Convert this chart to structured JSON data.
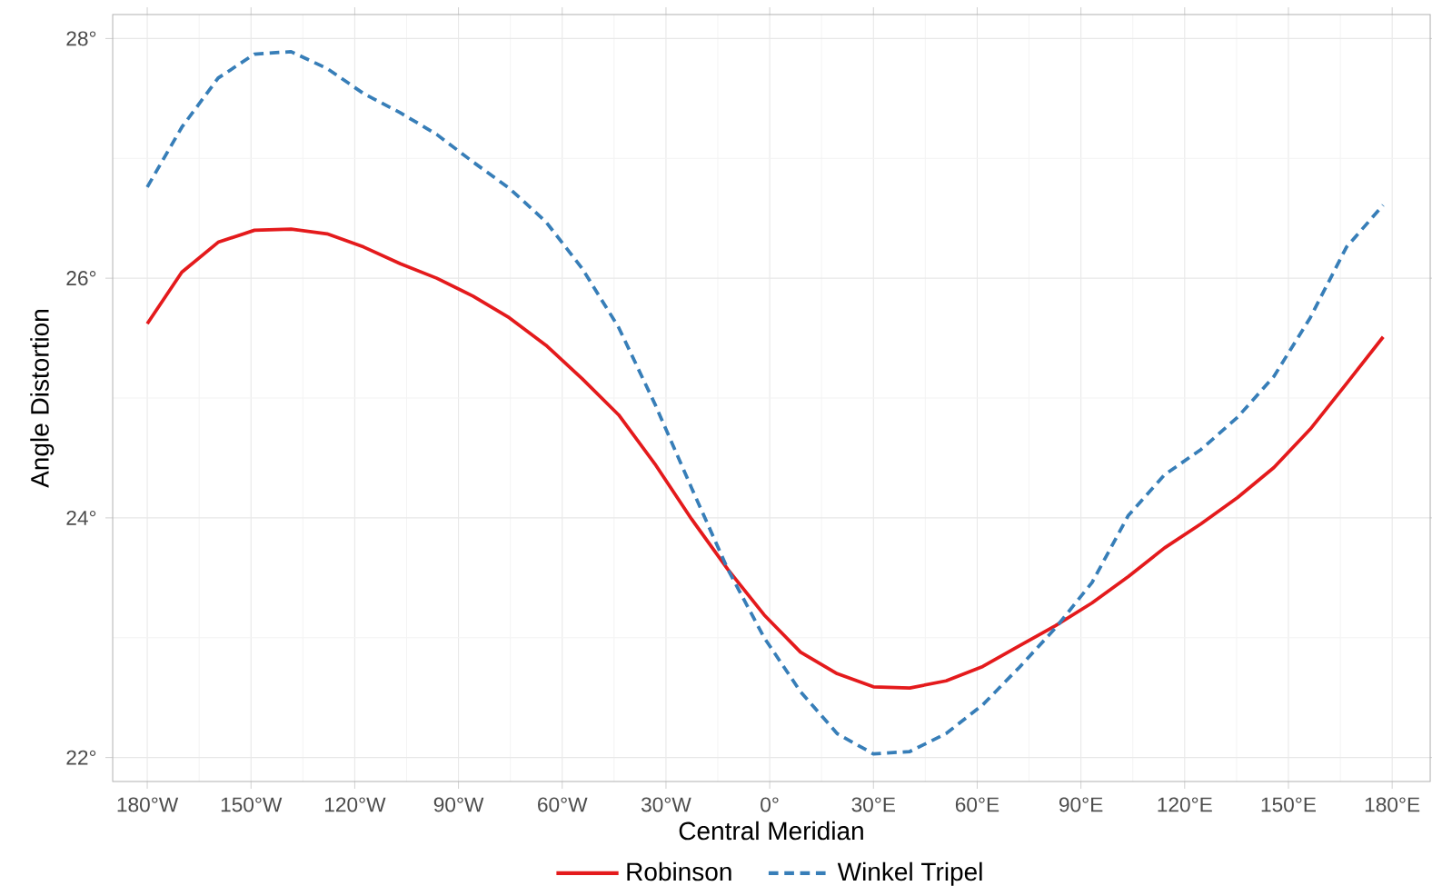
{
  "chart_data": {
    "type": "line",
    "xlabel": "Central Meridian",
    "ylabel": "Angle Distortion",
    "xlim": [
      -190,
      191
    ],
    "ylim": [
      21.8,
      28.2
    ],
    "xticks": [
      {
        "value": -180,
        "label": "180°W"
      },
      {
        "value": -150,
        "label": "150°W"
      },
      {
        "value": -120,
        "label": "120°W"
      },
      {
        "value": -90,
        "label": "90°W"
      },
      {
        "value": -60,
        "label": "60°W"
      },
      {
        "value": -30,
        "label": "30°W"
      },
      {
        "value": 0,
        "label": "0°"
      },
      {
        "value": 30,
        "label": "30°E"
      },
      {
        "value": 60,
        "label": "60°E"
      },
      {
        "value": 90,
        "label": "90°E"
      },
      {
        "value": 120,
        "label": "120°E"
      },
      {
        "value": 150,
        "label": "150°E"
      },
      {
        "value": 180,
        "label": "180°E"
      }
    ],
    "yticks": [
      {
        "value": 22,
        "label": "22°"
      },
      {
        "value": 24,
        "label": "24°"
      },
      {
        "value": 26,
        "label": "26°"
      },
      {
        "value": 28,
        "label": "28°"
      }
    ],
    "grid": true,
    "legend": "bottom",
    "x": [
      -180,
      -170,
      -159.5,
      -149,
      -138.4,
      -128,
      -117.4,
      -106.8,
      -96.3,
      -85.8,
      -75.3,
      -64.7,
      -54.2,
      -43.7,
      -33.2,
      -22.6,
      -12.1,
      -1.6,
      8.9,
      19.5,
      30,
      40.5,
      51,
      61.6,
      72.1,
      82.6,
      93.2,
      103.7,
      114.2,
      124.7,
      135.3,
      145.8,
      156.3,
      166.8,
      177.4
    ],
    "series": [
      {
        "name": "Robinson",
        "color": "#e41a1c",
        "line_style": "solid",
        "values": [
          25.62,
          26.05,
          26.3,
          26.4,
          26.41,
          26.37,
          26.26,
          26.12,
          26.0,
          25.85,
          25.67,
          25.44,
          25.16,
          24.86,
          24.45,
          23.99,
          23.57,
          23.19,
          22.88,
          22.7,
          22.59,
          22.58,
          22.64,
          22.76,
          22.93,
          23.1,
          23.29,
          23.51,
          23.75,
          23.95,
          24.17,
          24.42,
          24.74,
          25.12,
          25.51
        ]
      },
      {
        "name": "Winkel Tripel",
        "color": "#377eb8",
        "line_style": "dashed",
        "values": [
          26.76,
          27.26,
          27.67,
          27.87,
          27.89,
          27.75,
          27.54,
          27.38,
          27.2,
          26.97,
          26.75,
          26.47,
          26.08,
          25.59,
          24.95,
          24.25,
          23.57,
          23.0,
          22.55,
          22.2,
          22.03,
          22.05,
          22.2,
          22.44,
          22.75,
          23.08,
          23.46,
          24.02,
          24.36,
          24.57,
          24.84,
          25.18,
          25.67,
          26.26,
          26.61
        ]
      }
    ]
  }
}
